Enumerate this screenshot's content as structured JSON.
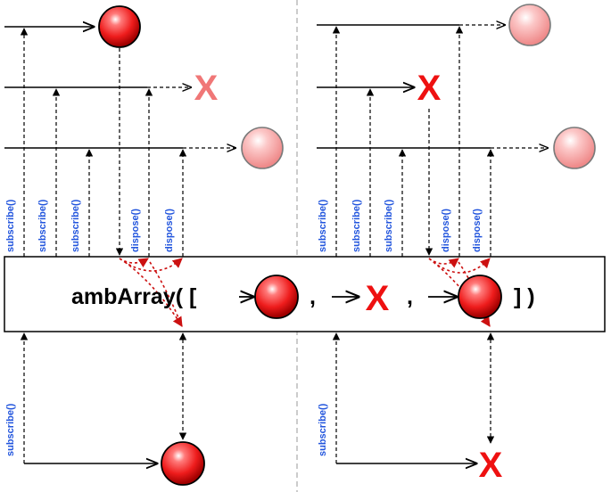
{
  "operator": {
    "prefix": "ambArray( [",
    "separator_1": ",",
    "separator_2": ",",
    "suffix": "] )"
  },
  "labels": {
    "subscribe": "subscribe()",
    "dispose": "dispose()"
  },
  "markers": {
    "error_glyph": "X"
  },
  "colors": {
    "marble": "#ee1c1c",
    "marble_faded": "#f5a0a0",
    "error_bright": "#ee1111",
    "error_faded": "#f07777",
    "subscribe_text": "#2255dd",
    "dispose_arrow": "#cc1111",
    "divider": "#bbbbbb"
  }
}
